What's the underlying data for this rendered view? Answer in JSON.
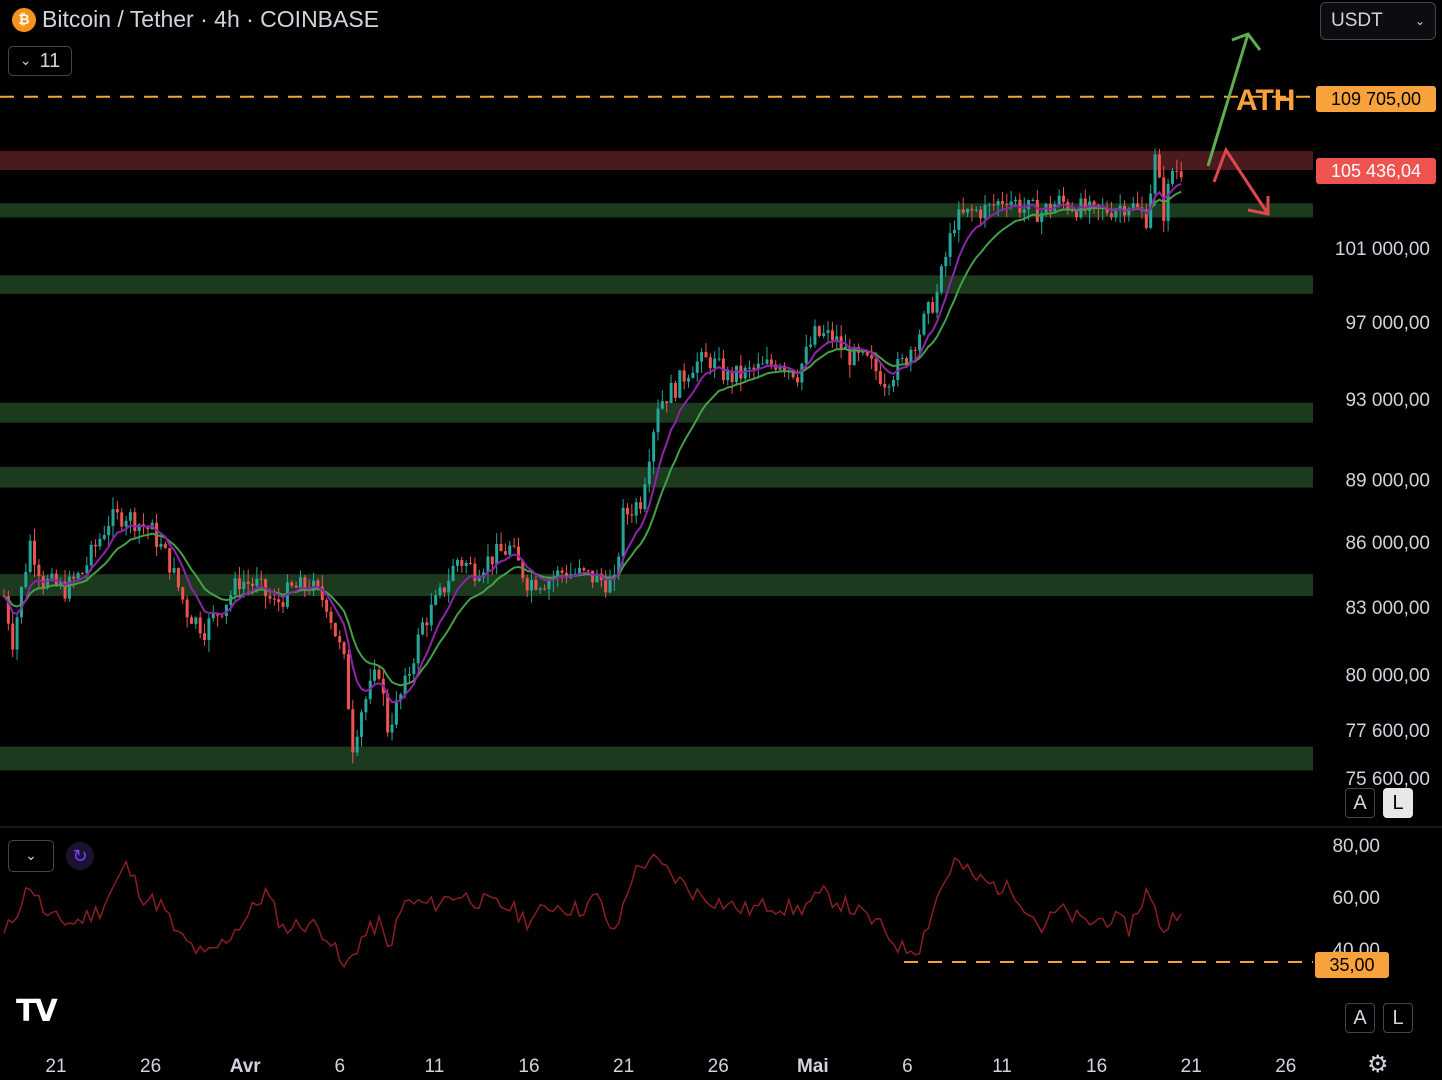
{
  "header": {
    "title": "Bitcoin / Tether · 4h · COINBASE",
    "icon": "bitcoin-icon",
    "indicator_count": "11",
    "currency": "USDT"
  },
  "price_tags": {
    "ath": "109 705,00",
    "current": "105 436,04",
    "rsi_level": "35,00"
  },
  "annotation": {
    "ath_label": "ATH"
  },
  "scale_buttons": {
    "auto": "A",
    "log": "L"
  },
  "colors": {
    "background": "#000000",
    "up": "#26a69a",
    "down": "#ef5350",
    "ema_fast": "#8e24aa",
    "ema_slow": "#43a047",
    "ath_line": "#f7a23b",
    "support_zone": "#1b3a1e",
    "resistance_zone": "#4a1a1f",
    "rsi_line": "#8b1e24",
    "arrow_up": "#5fae4e",
    "arrow_down": "#e0474c"
  },
  "chart_data": {
    "type": "candlestick",
    "timeframe": "4h",
    "y_ticks": [
      "101 000,00",
      "97 000,00",
      "93 000,00",
      "89 000,00",
      "86 000,00",
      "83 000,00",
      "80 000,00",
      "77 600,00",
      "75 600,00"
    ],
    "y_tick_values": [
      101000,
      97000,
      93000,
      89000,
      86000,
      83000,
      80000,
      77600,
      75600
    ],
    "x_ticks": [
      "21",
      "26",
      "Avr",
      "6",
      "11",
      "16",
      "21",
      "26",
      "Mai",
      "6",
      "11",
      "16",
      "21",
      "26"
    ],
    "ath_level": 109705,
    "current_price": 105436.04,
    "resistance_zone": [
      105400,
      106500
    ],
    "support_zones": [
      [
        102700,
        103500
      ],
      [
        98500,
        99500
      ],
      [
        91800,
        92800
      ],
      [
        88600,
        89600
      ],
      [
        83500,
        84500
      ],
      [
        75900,
        76900
      ]
    ],
    "price_path": [
      [
        0,
        83500
      ],
      [
        2,
        81500
      ],
      [
        6,
        86000
      ],
      [
        9,
        84200
      ],
      [
        14,
        83800
      ],
      [
        18,
        84600
      ],
      [
        24,
        87000
      ],
      [
        28,
        87300
      ],
      [
        34,
        86500
      ],
      [
        38,
        85000
      ],
      [
        42,
        82800
      ],
      [
        46,
        82000
      ],
      [
        50,
        83000
      ],
      [
        54,
        84200
      ],
      [
        58,
        84000
      ],
      [
        62,
        83100
      ],
      [
        66,
        83800
      ],
      [
        70,
        84000
      ],
      [
        74,
        83200
      ],
      [
        78,
        80500
      ],
      [
        80,
        77000
      ],
      [
        82,
        78500
      ],
      [
        86,
        80200
      ],
      [
        88,
        77700
      ],
      [
        92,
        79500
      ],
      [
        96,
        82200
      ],
      [
        100,
        83500
      ],
      [
        104,
        85200
      ],
      [
        108,
        84700
      ],
      [
        112,
        85300
      ],
      [
        116,
        85700
      ],
      [
        120,
        84200
      ],
      [
        124,
        84200
      ],
      [
        128,
        84600
      ],
      [
        132,
        84500
      ],
      [
        136,
        84300
      ],
      [
        140,
        84000
      ],
      [
        142,
        87200
      ],
      [
        146,
        88000
      ],
      [
        150,
        92800
      ],
      [
        154,
        93600
      ],
      [
        158,
        94800
      ],
      [
        162,
        95000
      ],
      [
        166,
        94100
      ],
      [
        170,
        94300
      ],
      [
        174,
        94600
      ],
      [
        178,
        95000
      ],
      [
        182,
        94300
      ],
      [
        186,
        96300
      ],
      [
        190,
        96200
      ],
      [
        194,
        95200
      ],
      [
        198,
        94900
      ],
      [
        202,
        94000
      ],
      [
        206,
        94800
      ],
      [
        210,
        96500
      ],
      [
        214,
        98500
      ],
      [
        218,
        102500
      ],
      [
        222,
        103000
      ],
      [
        226,
        103200
      ],
      [
        230,
        103900
      ],
      [
        234,
        103200
      ],
      [
        238,
        103000
      ],
      [
        242,
        103600
      ],
      [
        246,
        103300
      ],
      [
        250,
        102900
      ],
      [
        254,
        103200
      ],
      [
        258,
        103500
      ],
      [
        262,
        102700
      ],
      [
        264,
        106000
      ],
      [
        266,
        103000
      ],
      [
        268,
        105400
      ],
      [
        270,
        105436
      ]
    ],
    "rsi": {
      "ticks": [
        "80,00",
        "60,00",
        "40,00"
      ],
      "tick_values": [
        80,
        60,
        40
      ],
      "level": 35,
      "path": [
        [
          0,
          45
        ],
        [
          6,
          65
        ],
        [
          10,
          52
        ],
        [
          16,
          50
        ],
        [
          22,
          55
        ],
        [
          28,
          72
        ],
        [
          32,
          60
        ],
        [
          36,
          57
        ],
        [
          40,
          45
        ],
        [
          46,
          37
        ],
        [
          50,
          42
        ],
        [
          56,
          53
        ],
        [
          60,
          62
        ],
        [
          64,
          48
        ],
        [
          70,
          50
        ],
        [
          74,
          46
        ],
        [
          78,
          32
        ],
        [
          82,
          44
        ],
        [
          86,
          50
        ],
        [
          88,
          40
        ],
        [
          92,
          58
        ],
        [
          98,
          57
        ],
        [
          104,
          61
        ],
        [
          110,
          58
        ],
        [
          116,
          56
        ],
        [
          120,
          51
        ],
        [
          126,
          57
        ],
        [
          132,
          55
        ],
        [
          136,
          60
        ],
        [
          140,
          45
        ],
        [
          144,
          68
        ],
        [
          148,
          75
        ],
        [
          152,
          70
        ],
        [
          158,
          62
        ],
        [
          164,
          58
        ],
        [
          170,
          55
        ],
        [
          176,
          57
        ],
        [
          182,
          55
        ],
        [
          188,
          61
        ],
        [
          194,
          56
        ],
        [
          200,
          50
        ],
        [
          206,
          40
        ],
        [
          210,
          41
        ],
        [
          214,
          60
        ],
        [
          218,
          74
        ],
        [
          222,
          68
        ],
        [
          226,
          65
        ],
        [
          232,
          62
        ],
        [
          238,
          48
        ],
        [
          242,
          55
        ],
        [
          248,
          50
        ],
        [
          254,
          52
        ],
        [
          258,
          48
        ],
        [
          262,
          62
        ],
        [
          266,
          47
        ],
        [
          270,
          57
        ]
      ]
    }
  }
}
